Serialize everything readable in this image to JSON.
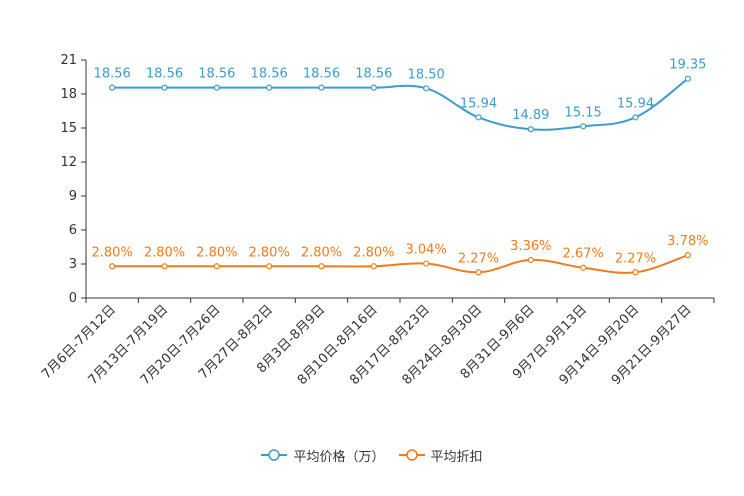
{
  "chart_data": {
    "type": "line",
    "categories": [
      "7月6日-7月12日",
      "7月13日-7月19日",
      "7月20日-7月26日",
      "7月27日-8月2日",
      "8月3日-8月9日",
      "8月10日-8月16日",
      "8月17日-8月23日",
      "8月24日-8月30日",
      "8月31日-9月6日",
      "9月7日-9月13日",
      "9月14日-9月20日",
      "9月21日-9月27日"
    ],
    "yticks": [
      0,
      3,
      6,
      9,
      12,
      15,
      18,
      21
    ],
    "ylim": [
      0,
      21
    ],
    "series": [
      {
        "name": "平均价格（万）",
        "color": "#3a9dcc",
        "values": [
          18.56,
          18.56,
          18.56,
          18.56,
          18.56,
          18.56,
          18.5,
          15.94,
          14.89,
          15.15,
          15.94,
          19.35
        ],
        "labels": [
          "18.56",
          "18.56",
          "18.56",
          "18.56",
          "18.56",
          "18.56",
          "18.50",
          "15.94",
          "14.89",
          "15.15",
          "15.94",
          "19.35"
        ]
      },
      {
        "name": "平均折扣",
        "color": "#f07c1b",
        "values": [
          2.8,
          2.8,
          2.8,
          2.8,
          2.8,
          2.8,
          3.04,
          2.27,
          3.36,
          2.67,
          2.27,
          3.78
        ],
        "labels": [
          "2.80%",
          "2.80%",
          "2.80%",
          "2.80%",
          "2.80%",
          "2.80%",
          "3.04%",
          "2.27%",
          "3.36%",
          "2.67%",
          "2.27%",
          "3.78%"
        ]
      }
    ]
  }
}
